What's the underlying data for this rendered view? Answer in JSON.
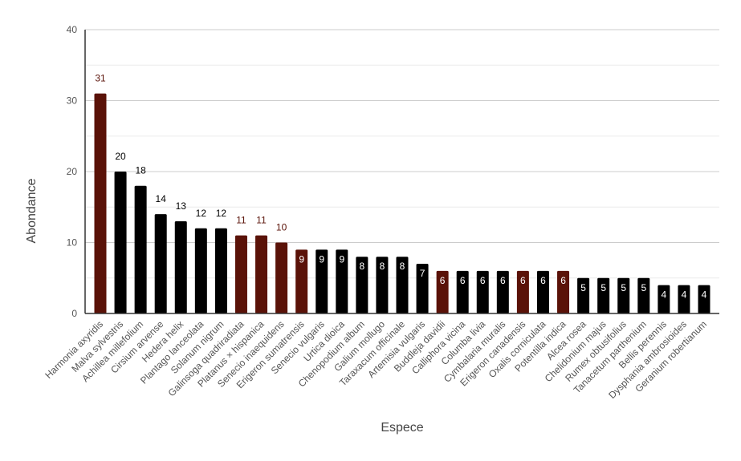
{
  "chart_data": {
    "type": "bar",
    "xlabel": "Espece",
    "ylabel": "Abondance",
    "ylim": [
      0,
      40
    ],
    "yticks": [
      0,
      10,
      20,
      30,
      40
    ],
    "grid": true,
    "legend": "none",
    "colors": {
      "native": "#000000",
      "exotic": "#5a1208",
      "label_on_dark": "#ffffff",
      "label_above_native": "#000000",
      "label_above_exotic": "#5a1208",
      "grid": "#cccccc",
      "axis": "#333333",
      "tick_text": "#555555"
    },
    "categories": [
      "Harmonia axyridis",
      "Malva sylvestris",
      "Achillea millefolium",
      "Cirsium arvense",
      "Hedera helix",
      "Plantago lanceolata",
      "Solanum nigrum",
      "Galinsoga quadriradiata",
      "Platanus × hispanica",
      "Senecio inaequidens",
      "Erigeron sumatrensis",
      "Senecio vulgaris",
      "Urtica dioica",
      "Chenopodium album",
      "Galium mollugo",
      "Taraxacum officinale",
      "Artemisia vulgaris",
      "Buddleja davidii",
      "Calliphora vicina",
      "Columba livia",
      "Cymbalaria muralis",
      "Erigeron canadensis",
      "Oxalis corniculata",
      "Potentilla indica",
      "Alcea rosea",
      "Chelidonium majus",
      "Rumex obtusifolius",
      "Tanacetum parthenium",
      "Bellis perennis",
      "Dysphania ambrosioides",
      "Geranium robertianum"
    ],
    "values": [
      31,
      20,
      18,
      14,
      13,
      12,
      12,
      11,
      11,
      10,
      9,
      9,
      9,
      8,
      8,
      8,
      7,
      6,
      6,
      6,
      6,
      6,
      6,
      6,
      5,
      5,
      5,
      5,
      4,
      4,
      4
    ],
    "bar_color_group": [
      "exotic",
      "native",
      "native",
      "native",
      "native",
      "native",
      "native",
      "exotic",
      "exotic",
      "exotic",
      "exotic",
      "native",
      "native",
      "native",
      "native",
      "native",
      "native",
      "exotic",
      "native",
      "native",
      "native",
      "exotic",
      "native",
      "exotic",
      "native",
      "native",
      "native",
      "native",
      "native",
      "native",
      "native"
    ]
  }
}
